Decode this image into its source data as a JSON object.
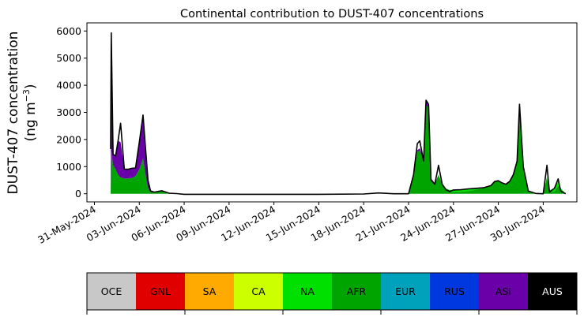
{
  "chart_data": {
    "type": "area",
    "title": "Continental contribution to DUST-407 concentrations",
    "ylabel_line1": "DUST-407 concentration",
    "ylabel_line2": "(ng m",
    "ylabel_unit_sup": "−3",
    "ylabel_line2_end": ")",
    "xlabel": "",
    "x_start": "2024-05-31",
    "x_end": "2024-06-30",
    "xlim": [
      "2024-05-30T12:00",
      "2024-07-02T06:00"
    ],
    "ylim": [
      -300,
      6300
    ],
    "xtick_labels": [
      "31-May-2024",
      "03-Jun-2024",
      "06-Jun-2024",
      "09-Jun-2024",
      "12-Jun-2024",
      "15-Jun-2024",
      "18-Jun-2024",
      "21-Jun-2024",
      "24-Jun-2024",
      "27-Jun-2024",
      "30-Jun-2024"
    ],
    "xtick_dates": [
      "2024-05-31",
      "2024-06-03",
      "2024-06-06",
      "2024-06-09",
      "2024-06-12",
      "2024-06-15",
      "2024-06-18",
      "2024-06-21",
      "2024-06-24",
      "2024-06-27",
      "2024-06-30"
    ],
    "ytick_values": [
      0,
      1000,
      2000,
      3000,
      4000,
      5000,
      6000
    ],
    "stack_order": [
      "AFR",
      "NA",
      "ASI"
    ],
    "series": [
      {
        "name": "AFR",
        "color": "#00a400",
        "points": [
          [
            "2024-06-01T02:00",
            0
          ],
          [
            "2024-06-01T03:00",
            1580
          ],
          [
            "2024-06-01T06:00",
            1050
          ],
          [
            "2024-06-01T10:00",
            900
          ],
          [
            "2024-06-01T14:00",
            700
          ],
          [
            "2024-06-01T18:00",
            600
          ],
          [
            "2024-06-02T00:00",
            560
          ],
          [
            "2024-06-02T06:00",
            560
          ],
          [
            "2024-06-02T12:00",
            580
          ],
          [
            "2024-06-02T18:00",
            650
          ],
          [
            "2024-06-03T00:00",
            900
          ],
          [
            "2024-06-03T06:00",
            1300
          ],
          [
            "2024-06-03T10:00",
            700
          ],
          [
            "2024-06-03T14:00",
            200
          ],
          [
            "2024-06-03T18:00",
            60
          ],
          [
            "2024-06-04T00:00",
            40
          ],
          [
            "2024-06-04T12:00",
            90
          ],
          [
            "2024-06-05T00:00",
            10
          ],
          [
            "2024-06-05T12:00",
            5
          ],
          [
            "2024-06-06T00:00",
            0
          ],
          [
            "2024-06-21T00:00",
            0
          ],
          [
            "2024-06-21T08:00",
            700
          ],
          [
            "2024-06-21T14:00",
            1550
          ],
          [
            "2024-06-21T18:00",
            1600
          ],
          [
            "2024-06-22T00:00",
            1200
          ],
          [
            "2024-06-22T04:00",
            3250
          ],
          [
            "2024-06-22T08:00",
            3200
          ],
          [
            "2024-06-22T12:00",
            500
          ],
          [
            "2024-06-22T18:00",
            350
          ],
          [
            "2024-06-23T00:00",
            700
          ],
          [
            "2024-06-23T06:00",
            350
          ],
          [
            "2024-06-23T12:00",
            150
          ],
          [
            "2024-06-23T18:00",
            80
          ],
          [
            "2024-06-24T00:00",
            60
          ],
          [
            "2024-06-24T12:00",
            70
          ],
          [
            "2024-06-25T00:00",
            100
          ],
          [
            "2024-06-25T12:00",
            150
          ],
          [
            "2024-06-26T00:00",
            200
          ],
          [
            "2024-06-26T12:00",
            300
          ],
          [
            "2024-06-26T18:00",
            450
          ],
          [
            "2024-06-27T00:00",
            480
          ],
          [
            "2024-06-27T06:00",
            400
          ],
          [
            "2024-06-27T12:00",
            350
          ],
          [
            "2024-06-27T18:00",
            450
          ],
          [
            "2024-06-28T00:00",
            700
          ],
          [
            "2024-06-28T06:00",
            1200
          ],
          [
            "2024-06-28T10:00",
            3150
          ],
          [
            "2024-06-28T16:00",
            1000
          ],
          [
            "2024-06-29T00:00",
            100
          ],
          [
            "2024-06-29T12:00",
            10
          ],
          [
            "2024-06-30T00:00",
            0
          ],
          [
            "2024-06-30T06:00",
            600
          ],
          [
            "2024-06-30T10:00",
            60
          ],
          [
            "2024-06-30T18:00",
            80
          ],
          [
            "2024-07-01T00:00",
            300
          ],
          [
            "2024-07-01T04:00",
            100
          ],
          [
            "2024-07-01T12:00",
            0
          ]
        ]
      },
      {
        "name": "NA",
        "color": "#00e000",
        "points": [
          [
            "2024-06-01T02:00",
            0
          ],
          [
            "2024-06-03T00:00",
            0
          ],
          [
            "2024-06-05T00:00",
            0
          ],
          [
            "2024-06-21T00:00",
            0
          ],
          [
            "2024-06-22T00:00",
            0
          ],
          [
            "2024-06-23T00:00",
            0
          ],
          [
            "2024-06-24T00:00",
            80
          ],
          [
            "2024-06-24T12:00",
            80
          ],
          [
            "2024-06-25T00:00",
            80
          ],
          [
            "2024-06-25T12:00",
            50
          ],
          [
            "2024-06-26T00:00",
            20
          ],
          [
            "2024-06-27T00:00",
            0
          ],
          [
            "2024-06-30T00:00",
            0
          ],
          [
            "2024-06-30T18:00",
            120
          ],
          [
            "2024-07-01T00:00",
            150
          ],
          [
            "2024-07-01T12:00",
            0
          ]
        ]
      },
      {
        "name": "ASI",
        "color": "#6a00a8",
        "points": [
          [
            "2024-06-01T02:00",
            0
          ],
          [
            "2024-06-01T03:00",
            4350
          ],
          [
            "2024-06-01T06:00",
            400
          ],
          [
            "2024-06-01T10:00",
            500
          ],
          [
            "2024-06-01T14:00",
            1250
          ],
          [
            "2024-06-01T18:00",
            1300
          ],
          [
            "2024-06-02T00:00",
            350
          ],
          [
            "2024-06-02T06:00",
            340
          ],
          [
            "2024-06-02T12:00",
            360
          ],
          [
            "2024-06-02T18:00",
            300
          ],
          [
            "2024-06-03T00:00",
            1000
          ],
          [
            "2024-06-03T06:00",
            1600
          ],
          [
            "2024-06-03T10:00",
            1000
          ],
          [
            "2024-06-03T14:00",
            300
          ],
          [
            "2024-06-03T18:00",
            40
          ],
          [
            "2024-06-04T00:00",
            20
          ],
          [
            "2024-06-04T12:00",
            20
          ],
          [
            "2024-06-05T00:00",
            10
          ],
          [
            "2024-06-05T12:00",
            0
          ],
          [
            "2024-06-21T00:00",
            0
          ],
          [
            "2024-06-22T00:00",
            100
          ],
          [
            "2024-06-22T04:00",
            200
          ],
          [
            "2024-06-22T08:00",
            100
          ],
          [
            "2024-06-23T00:00",
            0
          ],
          [
            "2024-06-30T00:00",
            0
          ],
          [
            "2024-07-01T12:00",
            0
          ]
        ]
      }
    ],
    "total_line": {
      "color": "#000000",
      "points": [
        [
          "2024-06-01T02:00",
          1650
        ],
        [
          "2024-06-01T03:00",
          5930
        ],
        [
          "2024-06-01T06:00",
          1450
        ],
        [
          "2024-06-01T10:00",
          1400
        ],
        [
          "2024-06-01T14:00",
          1950
        ],
        [
          "2024-06-01T18:00",
          2600
        ],
        [
          "2024-06-02T00:00",
          910
        ],
        [
          "2024-06-02T06:00",
          900
        ],
        [
          "2024-06-02T12:00",
          940
        ],
        [
          "2024-06-02T18:00",
          950
        ],
        [
          "2024-06-03T00:00",
          1900
        ],
        [
          "2024-06-03T06:00",
          2900
        ],
        [
          "2024-06-03T10:00",
          1700
        ],
        [
          "2024-06-03T14:00",
          500
        ],
        [
          "2024-06-03T18:00",
          100
        ],
        [
          "2024-06-04T00:00",
          60
        ],
        [
          "2024-06-04T12:00",
          110
        ],
        [
          "2024-06-05T00:00",
          20
        ],
        [
          "2024-06-05T12:00",
          5
        ],
        [
          "2024-06-06T00:00",
          -20
        ],
        [
          "2024-06-09T00:00",
          -20
        ],
        [
          "2024-06-12T00:00",
          -20
        ],
        [
          "2024-06-15T00:00",
          -20
        ],
        [
          "2024-06-18T00:00",
          -10
        ],
        [
          "2024-06-19T00:00",
          30
        ],
        [
          "2024-06-20T00:00",
          0
        ],
        [
          "2024-06-21T00:00",
          0
        ],
        [
          "2024-06-21T08:00",
          700
        ],
        [
          "2024-06-21T14:00",
          1850
        ],
        [
          "2024-06-21T18:00",
          1950
        ],
        [
          "2024-06-22T00:00",
          1200
        ],
        [
          "2024-06-22T04:00",
          3450
        ],
        [
          "2024-06-22T08:00",
          3300
        ],
        [
          "2024-06-22T12:00",
          500
        ],
        [
          "2024-06-22T18:00",
          350
        ],
        [
          "2024-06-23T00:00",
          1050
        ],
        [
          "2024-06-23T06:00",
          350
        ],
        [
          "2024-06-23T12:00",
          150
        ],
        [
          "2024-06-23T18:00",
          80
        ],
        [
          "2024-06-24T00:00",
          140
        ],
        [
          "2024-06-24T12:00",
          150
        ],
        [
          "2024-06-25T00:00",
          180
        ],
        [
          "2024-06-25T12:00",
          200
        ],
        [
          "2024-06-26T00:00",
          220
        ],
        [
          "2024-06-26T12:00",
          300
        ],
        [
          "2024-06-26T18:00",
          450
        ],
        [
          "2024-06-27T00:00",
          480
        ],
        [
          "2024-06-27T06:00",
          400
        ],
        [
          "2024-06-27T12:00",
          350
        ],
        [
          "2024-06-27T18:00",
          450
        ],
        [
          "2024-06-28T00:00",
          700
        ],
        [
          "2024-06-28T06:00",
          1200
        ],
        [
          "2024-06-28T10:00",
          3300
        ],
        [
          "2024-06-28T16:00",
          1000
        ],
        [
          "2024-06-29T00:00",
          100
        ],
        [
          "2024-06-29T12:00",
          10
        ],
        [
          "2024-06-30T00:00",
          0
        ],
        [
          "2024-06-30T06:00",
          1050
        ],
        [
          "2024-06-30T10:00",
          60
        ],
        [
          "2024-06-30T18:00",
          200
        ],
        [
          "2024-07-01T00:00",
          550
        ],
        [
          "2024-07-01T04:00",
          100
        ],
        [
          "2024-07-01T12:00",
          0
        ]
      ]
    },
    "legend": {
      "placement": "bottom",
      "items": [
        {
          "label": "OCE",
          "color": "#c8c8c8",
          "text_color": "#000000"
        },
        {
          "label": "GNL",
          "color": "#e00000",
          "text_color": "#000000"
        },
        {
          "label": "SA",
          "color": "#ffaa00",
          "text_color": "#000000"
        },
        {
          "label": "CA",
          "color": "#ccff00",
          "text_color": "#000000"
        },
        {
          "label": "NA",
          "color": "#00e000",
          "text_color": "#000000"
        },
        {
          "label": "AFR",
          "color": "#00a400",
          "text_color": "#000000"
        },
        {
          "label": "EUR",
          "color": "#00a2bb",
          "text_color": "#000000"
        },
        {
          "label": "RUS",
          "color": "#0038e0",
          "text_color": "#000000"
        },
        {
          "label": "ASI",
          "color": "#6a00a8",
          "text_color": "#000000"
        },
        {
          "label": "AUS",
          "color": "#000000",
          "text_color": "#ffffff"
        }
      ]
    }
  }
}
